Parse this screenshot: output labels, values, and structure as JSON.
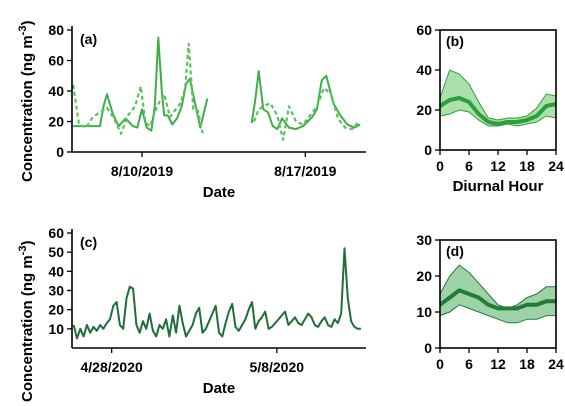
{
  "shared": {
    "ylabel": "Concentration (ng m",
    "ylabel_superscript": "-3",
    "ylabel_close": ")"
  },
  "colors": {
    "panel_a_line": "#3fae49",
    "panel_a_dashed": "#59c25e",
    "panel_b_band": "#8fd68f",
    "panel_b_line": "#2e9e3a",
    "panel_c_line": "#1f6e3a",
    "panel_d_band": "#7ec48a",
    "panel_d_line": "#227a3b"
  },
  "chart_data": [
    {
      "panel": "(a)",
      "type": "line",
      "xlabel": "Date",
      "ylabel": "Concentration (ng m-3)",
      "ylim": [
        0,
        80
      ],
      "yticks": [
        0,
        20,
        40,
        60,
        80
      ],
      "xticks": [
        {
          "label": "8/10/2019",
          "x": 10
        },
        {
          "label": "8/17/2019",
          "x": 17
        }
      ],
      "xlim": [
        7.0,
        19.6
      ],
      "series": [
        {
          "style": "solid",
          "x": [
            7.05,
            7.4,
            7.8,
            8.2,
            8.35,
            8.5,
            8.75,
            9.0,
            9.3,
            9.6,
            9.8,
            10.0,
            10.2,
            10.4,
            10.55,
            10.7,
            10.85,
            10.95,
            11.1,
            11.3,
            11.5,
            11.7,
            11.9,
            12.05,
            12.3,
            12.5,
            12.8
          ],
          "y": [
            17,
            17,
            17,
            17,
            30,
            38,
            25,
            17,
            22,
            17,
            16,
            28,
            16,
            14,
            30,
            75,
            40,
            24,
            24,
            18,
            22,
            30,
            45,
            48,
            30,
            16,
            35
          ]
        },
        {
          "style": "solid",
          "x": [
            14.7,
            14.85,
            15.0,
            15.2,
            15.4,
            15.6,
            15.8,
            16.0,
            16.3,
            16.6,
            16.9,
            17.1,
            17.3,
            17.5,
            17.7,
            17.9,
            18.2,
            18.5,
            18.8,
            19.1,
            19.35
          ],
          "y": [
            19,
            34,
            53,
            28,
            26,
            17,
            15,
            22,
            16,
            15,
            17,
            20,
            23,
            28,
            47,
            50,
            32,
            24,
            18,
            16,
            18
          ]
        },
        {
          "style": "dashed",
          "x": [
            7.05,
            7.3,
            7.6,
            7.9,
            8.2,
            8.5,
            8.8,
            9.1,
            9.4,
            9.7,
            9.95,
            10.15,
            10.35,
            10.55,
            10.75,
            10.95,
            11.2,
            11.45,
            11.65,
            11.85,
            12.0,
            12.2,
            12.4,
            12.6
          ],
          "y": [
            44,
            18,
            16,
            23,
            26,
            29,
            22,
            12,
            24,
            30,
            43,
            19,
            17,
            26,
            33,
            38,
            23,
            28,
            32,
            42,
            71,
            28,
            27,
            12
          ]
        },
        {
          "style": "dashed",
          "x": [
            14.8,
            15.0,
            15.2,
            15.5,
            15.8,
            16.05,
            16.3,
            16.6,
            16.9,
            17.2,
            17.5,
            17.8,
            18.1,
            18.4,
            18.7,
            19.0,
            19.3
          ],
          "y": [
            20,
            28,
            30,
            32,
            24,
            8,
            30,
            20,
            18,
            24,
            30,
            42,
            38,
            22,
            16,
            15,
            20
          ]
        }
      ]
    },
    {
      "panel": "(b)",
      "type": "area",
      "xlabel": "Diurnal Hour",
      "ylim": [
        0,
        60
      ],
      "yticks": [
        0,
        20,
        40,
        60
      ],
      "xlim": [
        0,
        24
      ],
      "xticks": [
        0,
        6,
        12,
        18,
        24
      ],
      "x": [
        0,
        2,
        4,
        6,
        8,
        10,
        12,
        14,
        16,
        18,
        20,
        22,
        24
      ],
      "mean": [
        22,
        25,
        26,
        24,
        18,
        14,
        13,
        14,
        14,
        15,
        17,
        22,
        23
      ],
      "lower": [
        17,
        18,
        20,
        19,
        15,
        12,
        12,
        13,
        12,
        13,
        14,
        17,
        16
      ],
      "upper": [
        26,
        40,
        38,
        33,
        24,
        16,
        15,
        16,
        16,
        17,
        21,
        28,
        27
      ]
    },
    {
      "panel": "(c)",
      "type": "line",
      "xlabel": "Date",
      "ylabel": "Concentration (ng m-3)",
      "ylim": [
        0,
        60
      ],
      "yticks": [
        10,
        20,
        30,
        40,
        50,
        60
      ],
      "xticks": [
        {
          "label": "4/28/2020",
          "x": 28
        },
        {
          "label": "5/8/2020",
          "x": 38
        }
      ],
      "xlim": [
        25.6,
        43.4
      ],
      "series": [
        {
          "style": "solid",
          "x": [
            25.7,
            25.9,
            26.1,
            26.3,
            26.5,
            26.7,
            26.9,
            27.1,
            27.3,
            27.5,
            27.7,
            27.9,
            28.1,
            28.3,
            28.5,
            28.7,
            28.9,
            29.1,
            29.3,
            29.5,
            29.7,
            29.9,
            30.1,
            30.3,
            30.5,
            30.7,
            30.9,
            31.1,
            31.3,
            31.5,
            31.7,
            31.9,
            32.1,
            32.3,
            32.5,
            32.7,
            32.9,
            33.1,
            33.3,
            33.5,
            33.7,
            33.9,
            34.1,
            34.3,
            34.5,
            34.7,
            34.9,
            35.1,
            35.3,
            35.5,
            35.7,
            35.9,
            36.1,
            36.3,
            36.5,
            36.7,
            36.9,
            37.1,
            37.3,
            37.5,
            37.7,
            37.9,
            38.1,
            38.3,
            38.5,
            38.7,
            38.9,
            39.1,
            39.3,
            39.5,
            39.7,
            39.9,
            40.1,
            40.3,
            40.5,
            40.7,
            40.9,
            41.1,
            41.3,
            41.5,
            41.7,
            41.9,
            42.1,
            42.3,
            42.5,
            42.7,
            42.9,
            43.1
          ],
          "y": [
            12,
            5,
            10,
            6,
            12,
            8,
            11,
            9,
            12,
            10,
            13,
            15,
            22,
            24,
            12,
            10,
            26,
            32,
            31,
            12,
            8,
            14,
            10,
            18,
            9,
            6,
            12,
            10,
            15,
            6,
            17,
            8,
            22,
            13,
            6,
            9,
            12,
            18,
            21,
            8,
            10,
            14,
            18,
            22,
            8,
            6,
            13,
            19,
            23,
            11,
            9,
            12,
            15,
            20,
            24,
            10,
            14,
            16,
            19,
            10,
            11,
            13,
            15,
            17,
            19,
            12,
            14,
            16,
            13,
            12,
            15,
            18,
            16,
            12,
            11,
            14,
            16,
            12,
            11,
            15,
            13,
            18,
            52,
            26,
            14,
            11,
            10,
            10
          ]
        }
      ]
    },
    {
      "panel": "(d)",
      "type": "area",
      "xlabel": "",
      "ylim": [
        0,
        30
      ],
      "yticks": [
        0,
        10,
        20,
        30
      ],
      "xlim": [
        0,
        24
      ],
      "xticks": [
        0,
        6,
        12,
        18,
        24
      ],
      "x": [
        0,
        2,
        4,
        6,
        8,
        10,
        12,
        14,
        16,
        18,
        20,
        22,
        24
      ],
      "mean": [
        12,
        14,
        16,
        15,
        14,
        12,
        11,
        11,
        11,
        12,
        12,
        13,
        13
      ],
      "lower": [
        9,
        10,
        12,
        11,
        10,
        9,
        8,
        7,
        7,
        8,
        8,
        9,
        9
      ],
      "upper": [
        15,
        20,
        23,
        21,
        18,
        15,
        12,
        11,
        12,
        14,
        15,
        17,
        17
      ]
    }
  ]
}
